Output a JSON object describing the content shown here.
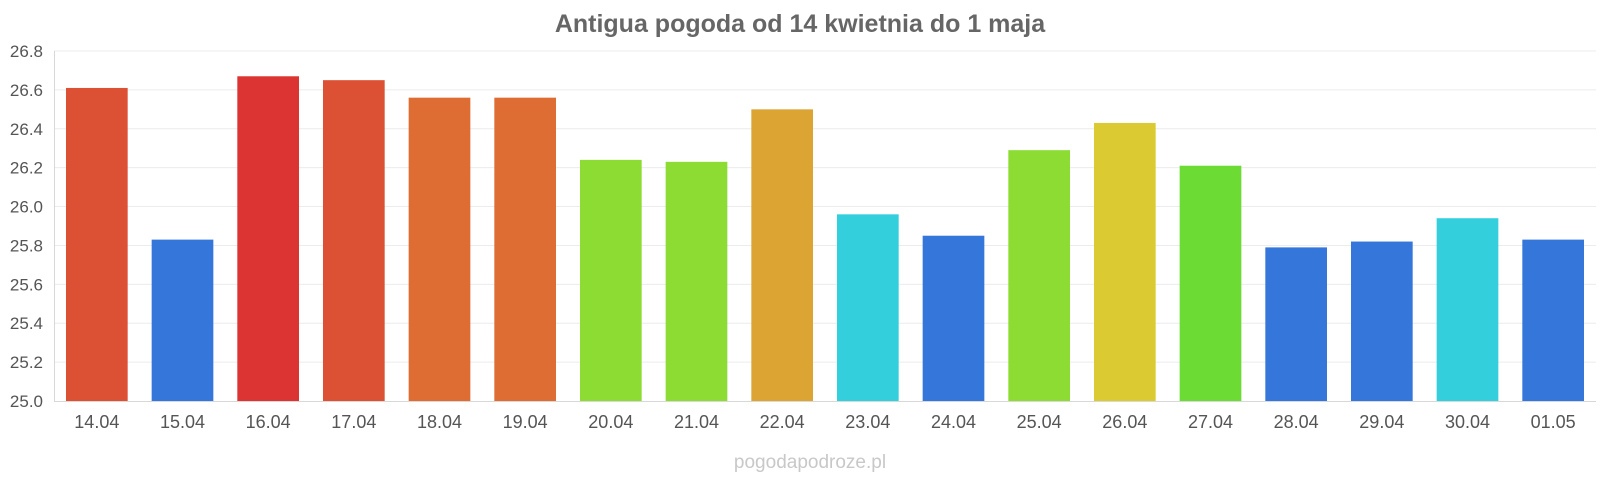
{
  "watermark": "pogodapodroze.pl",
  "chart_data": {
    "type": "bar",
    "title": "Antigua pogoda od 14 kwietnia do 1 maja",
    "xlabel": "",
    "ylabel": "",
    "ylim": [
      25.0,
      26.8
    ],
    "yticks": [
      "25.0",
      "25.2",
      "25.4",
      "25.6",
      "25.8",
      "26.0",
      "26.2",
      "26.4",
      "26.6",
      "26.8"
    ],
    "grid": true,
    "legend": "none",
    "categories": [
      "14.04",
      "15.04",
      "16.04",
      "17.04",
      "18.04",
      "19.04",
      "20.04",
      "21.04",
      "22.04",
      "23.04",
      "24.04",
      "25.04",
      "26.04",
      "27.04",
      "28.04",
      "29.04",
      "30.04",
      "01.05"
    ],
    "values": [
      26.61,
      25.83,
      26.67,
      26.65,
      26.56,
      26.56,
      26.24,
      26.23,
      26.5,
      25.96,
      25.85,
      26.29,
      26.43,
      26.21,
      25.79,
      25.82,
      25.94,
      25.83
    ],
    "colors": [
      "#dc5033",
      "#3476da",
      "#dc3333",
      "#dc5033",
      "#dd6d33",
      "#dd6d33",
      "#8cdc33",
      "#8cdc33",
      "#dca533",
      "#33cfdc",
      "#3476da",
      "#8cdc33",
      "#dcca33",
      "#6cdb33",
      "#3476da",
      "#3476da",
      "#33cfdc",
      "#3476da"
    ]
  }
}
